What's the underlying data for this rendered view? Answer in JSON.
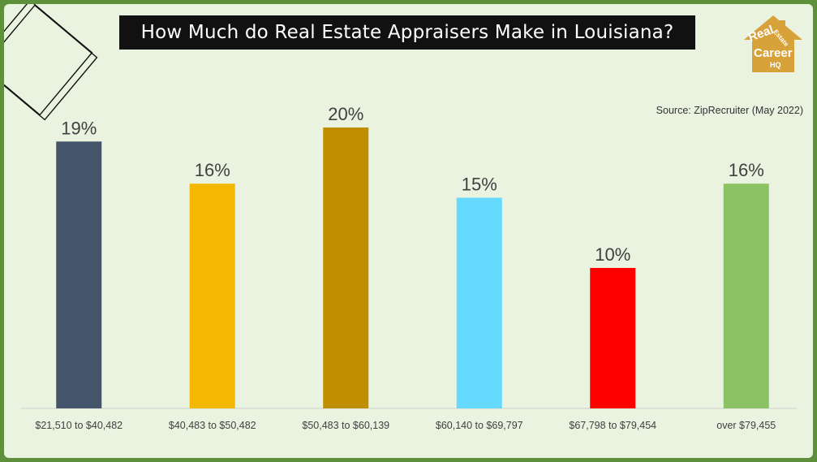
{
  "title": "How Much do Real Estate Appraisers Make in Louisiana?",
  "source": "Source: ZipRecruiter (May 2022)",
  "logo": {
    "text": [
      "Real",
      "Estate",
      "Career",
      "HQ"
    ],
    "color": "#d8a23a"
  },
  "chart_data": {
    "type": "bar",
    "title": "How Much do Real Estate Appraisers Make in Louisiana?",
    "categories": [
      "$21,510 to $40,482",
      "$40,483 to $50,482",
      "$50,483 to $60,139",
      "$60,140 to $69,797",
      "$67,798 to $79,454",
      "over $79,455"
    ],
    "values": [
      19,
      16,
      20,
      15,
      10,
      16
    ],
    "data_labels": [
      "19%",
      "16%",
      "20%",
      "15%",
      "10%",
      "16%"
    ],
    "colors": [
      "#44546a",
      "#f5b800",
      "#bf8f00",
      "#66d9ff",
      "#ff0000",
      "#8bc263"
    ],
    "ylim": [
      0,
      20
    ],
    "unit": "%",
    "grid": false,
    "legend": "none"
  }
}
